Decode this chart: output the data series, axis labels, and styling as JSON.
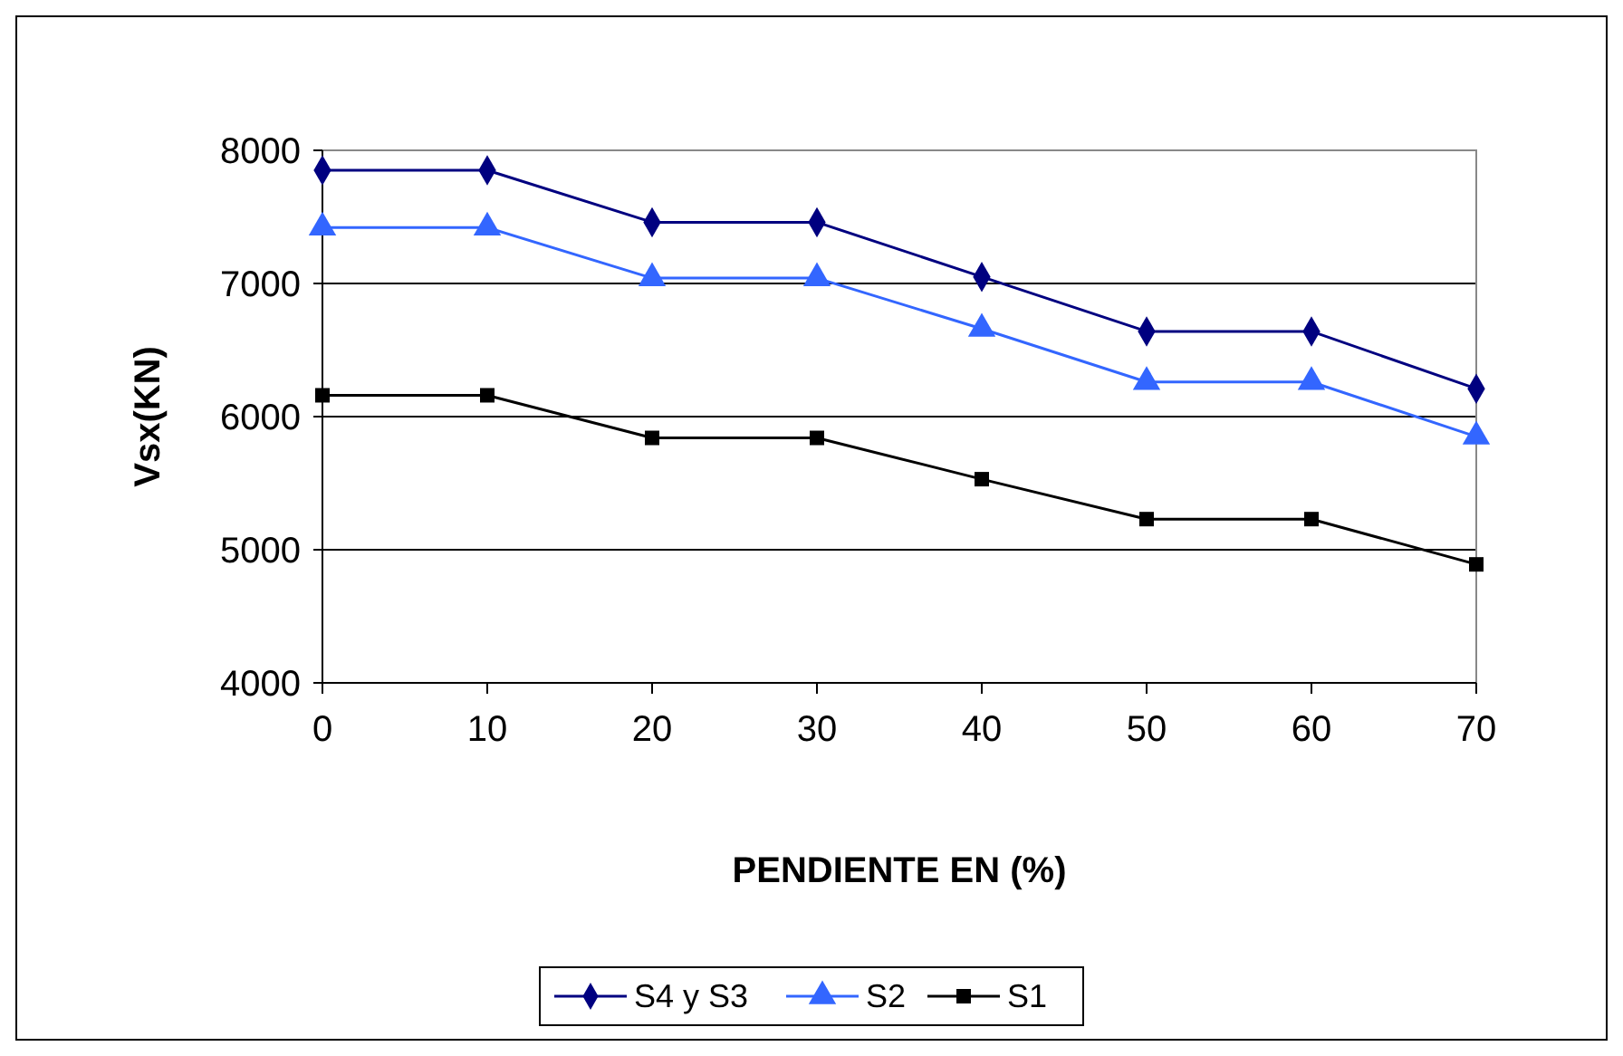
{
  "chart_data": {
    "type": "line",
    "xlabel": "PENDIENTE EN (%)",
    "ylabel": "Vsx(KN)",
    "x": [
      0,
      10,
      20,
      30,
      40,
      50,
      60,
      70
    ],
    "xlim": [
      0,
      70
    ],
    "xticks": [
      0,
      10,
      20,
      30,
      40,
      50,
      60,
      70
    ],
    "ylim": [
      4000,
      8000
    ],
    "yticks": [
      4000,
      5000,
      6000,
      7000,
      8000
    ],
    "grid": "y",
    "legend": "bottom",
    "line_style": "solid",
    "series": [
      {
        "name": "S4 y S3",
        "color": "#000080",
        "marker": "diamond",
        "values": [
          7850,
          7850,
          7460,
          7460,
          7050,
          6640,
          6640,
          6210
        ]
      },
      {
        "name": "S2",
        "color": "#3366ff",
        "marker": "triangle",
        "values": [
          7420,
          7420,
          7040,
          7040,
          6660,
          6260,
          6260,
          5850
        ]
      },
      {
        "name": "S1",
        "color": "#000000",
        "marker": "square",
        "values": [
          6160,
          6160,
          5840,
          5840,
          5530,
          5230,
          5230,
          4890
        ]
      }
    ]
  }
}
